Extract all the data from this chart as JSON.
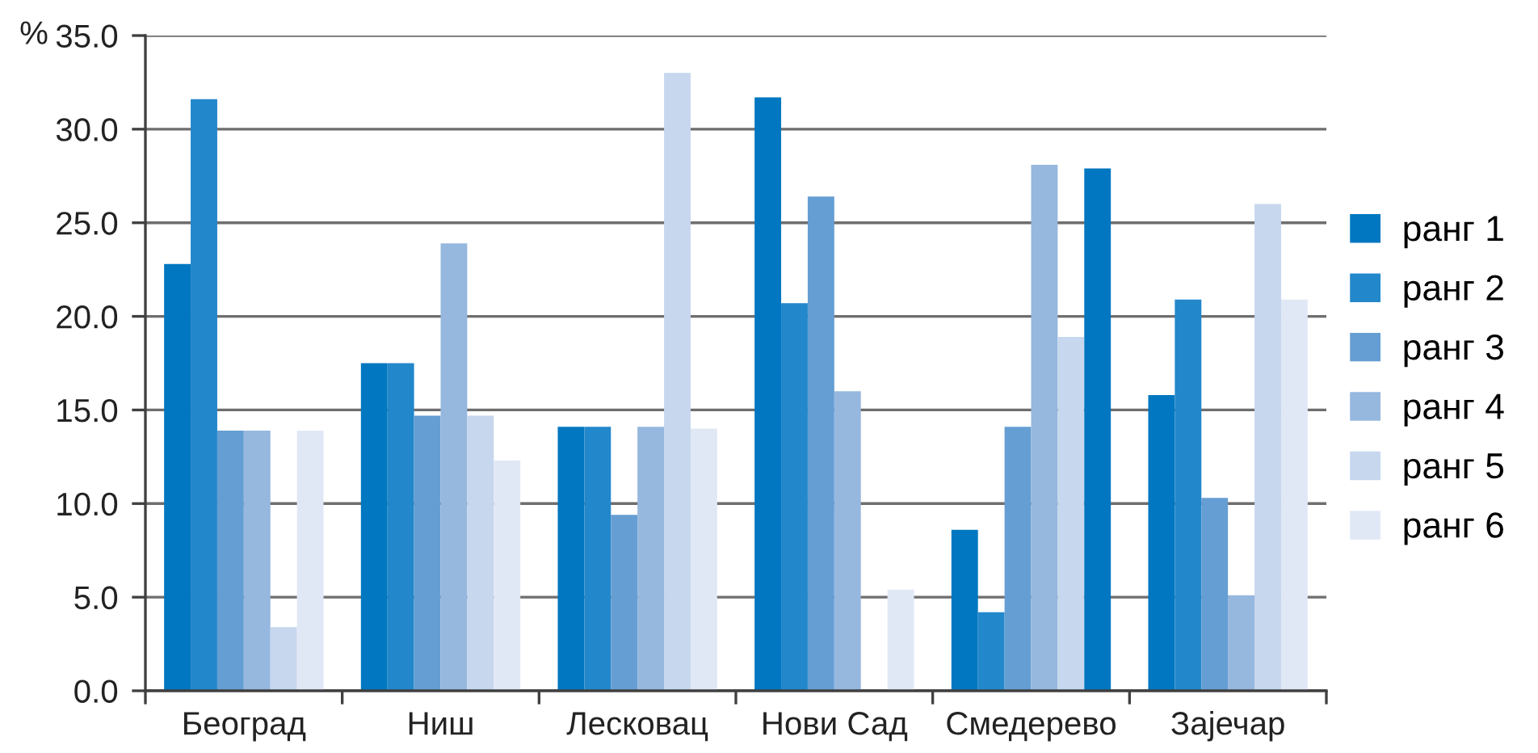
{
  "chart_data": {
    "type": "bar",
    "ylabel": "%",
    "categories": [
      "Београд",
      "Ниш",
      "Лесковац",
      "Нови Сад",
      "Смедерево",
      "Зајечар"
    ],
    "series": [
      {
        "name": "ранг 1",
        "color": "#0077c0",
        "values": [
          22.8,
          17.5,
          14.1,
          31.7,
          8.6,
          15.8
        ]
      },
      {
        "name": "ранг 2",
        "color": "#2387cb",
        "values": [
          31.6,
          17.5,
          14.1,
          20.7,
          4.2,
          20.9
        ]
      },
      {
        "name": "ранг 3",
        "color": "#659ed3",
        "values": [
          13.9,
          14.7,
          9.4,
          26.4,
          14.1,
          10.3
        ]
      },
      {
        "name": "ранг 4",
        "color": "#96b7de",
        "values": [
          13.9,
          23.9,
          14.1,
          16.0,
          28.1,
          5.1
        ]
      },
      {
        "name": "ранг 5",
        "color": "#c6d7ee",
        "values": [
          3.4,
          14.7,
          33.0,
          null,
          18.9,
          26.0
        ]
      },
      {
        "name": "ранг 6",
        "color": "#e1e8f5",
        "colors": [
          "#e1e8f5",
          "#e1e8f5",
          "#e1e8f5",
          "#e1e8f5",
          "#0077c0",
          "#e1e8f5"
        ],
        "values": [
          13.9,
          12.3,
          14.0,
          5.4,
          27.9,
          20.9
        ]
      }
    ],
    "ylim": [
      0,
      35
    ],
    "yticks": [
      {
        "value": 0,
        "label": "0.0"
      },
      {
        "value": 5,
        "label": "5.0"
      },
      {
        "value": 10,
        "label": "10.0"
      },
      {
        "value": 15,
        "label": "15.0"
      },
      {
        "value": 20,
        "label": "20.0"
      },
      {
        "value": 25,
        "label": "25.0"
      },
      {
        "value": 30,
        "label": "30.0"
      },
      {
        "value": 35,
        "label": "35.0"
      }
    ],
    "grid": "y",
    "legend": "right"
  }
}
